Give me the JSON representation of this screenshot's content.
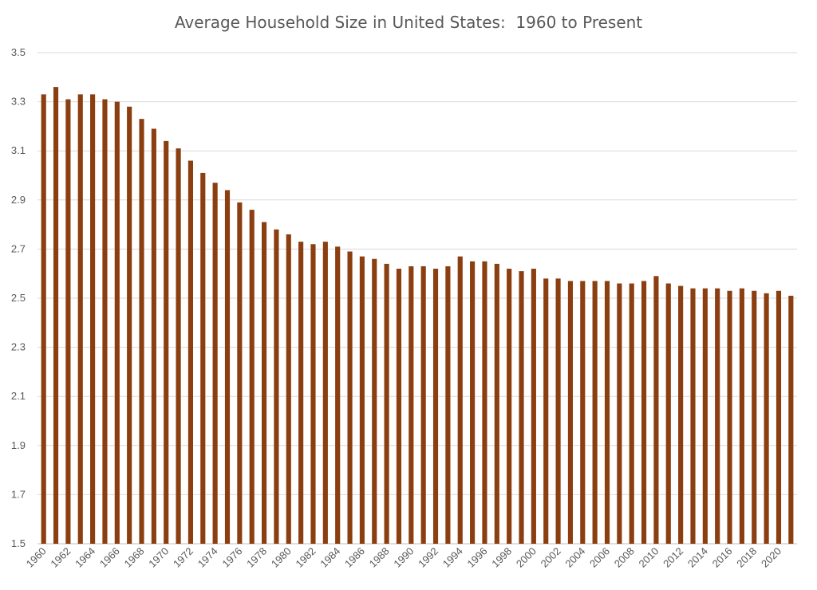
{
  "chart_data": {
    "type": "bar",
    "title": "Average Household Size in United States:  1960 to Present",
    "xlabel": "",
    "ylabel": "",
    "ylim": [
      1.5,
      3.5
    ],
    "yticks": [
      "1.5",
      "1.7",
      "1.9",
      "2.1",
      "2.3",
      "2.5",
      "2.7",
      "2.9",
      "3.1",
      "3.3",
      "3.5"
    ],
    "grid": true,
    "bar_color": "#8B3E0F",
    "categories": [
      "1960",
      "1961",
      "1962",
      "1963",
      "1964",
      "1965",
      "1966",
      "1967",
      "1968",
      "1969",
      "1970",
      "1971",
      "1972",
      "1973",
      "1974",
      "1975",
      "1976",
      "1977",
      "1978",
      "1979",
      "1980",
      "1981",
      "1982",
      "1983",
      "1984",
      "1985",
      "1986",
      "1987",
      "1988",
      "1989",
      "1990",
      "1991",
      "1992",
      "1993",
      "1994",
      "1995",
      "1996",
      "1997",
      "1998",
      "1999",
      "2000",
      "2001",
      "2002",
      "2003",
      "2004",
      "2005",
      "2006",
      "2007",
      "2008",
      "2009",
      "2010",
      "2011",
      "2012",
      "2013",
      "2014",
      "2015",
      "2016",
      "2017",
      "2018",
      "2019",
      "2020",
      "2021"
    ],
    "xtick_labels": [
      "1960",
      "1962",
      "1964",
      "1966",
      "1968",
      "1970",
      "1972",
      "1974",
      "1976",
      "1978",
      "1980",
      "1982",
      "1984",
      "1986",
      "1988",
      "1990",
      "1992",
      "1994",
      "1996",
      "1998",
      "2000",
      "2002",
      "2004",
      "2006",
      "2008",
      "2010",
      "2012",
      "2014",
      "2016",
      "2018",
      "2020"
    ],
    "values": [
      3.33,
      3.36,
      3.31,
      3.33,
      3.33,
      3.31,
      3.3,
      3.28,
      3.23,
      3.19,
      3.14,
      3.11,
      3.06,
      3.01,
      2.97,
      2.94,
      2.89,
      2.86,
      2.81,
      2.78,
      2.76,
      2.73,
      2.72,
      2.73,
      2.71,
      2.69,
      2.67,
      2.66,
      2.64,
      2.62,
      2.63,
      2.63,
      2.62,
      2.63,
      2.67,
      2.65,
      2.65,
      2.64,
      2.62,
      2.61,
      2.62,
      2.58,
      2.58,
      2.57,
      2.57,
      2.57,
      2.57,
      2.56,
      2.56,
      2.57,
      2.59,
      2.56,
      2.55,
      2.54,
      2.54,
      2.54,
      2.53,
      2.54,
      2.53,
      2.52,
      2.53,
      2.51
    ]
  }
}
